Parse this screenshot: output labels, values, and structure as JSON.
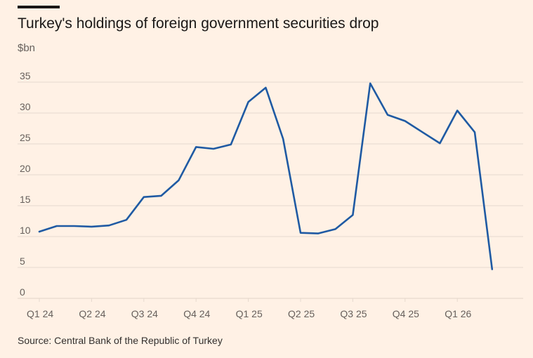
{
  "title": "Turkey's holdings of foreign government securities drop",
  "unit_label": "$bn",
  "source": "Source: Central Bank of the Republic of Turkey",
  "colors": {
    "background": "#fff1e5",
    "line": "#1f5aa3",
    "grid": "#e6d9ce",
    "text": "#66605c"
  },
  "chart_data": {
    "type": "line",
    "title": "Turkey's holdings of foreign government securities drop",
    "ylabel": "$bn",
    "xlabel": "",
    "ylim": [
      0,
      35
    ],
    "yticks": [
      0,
      5,
      10,
      15,
      20,
      25,
      30,
      35
    ],
    "grid": true,
    "x_tick_labels": [
      "Q1 24",
      "Q2 24",
      "Q3 24",
      "Q4 24",
      "Q1 25",
      "Q2 25",
      "Q3 25",
      "Q4 25",
      "Q1 26"
    ],
    "x": [
      "2024-01",
      "2024-02",
      "2024-03",
      "2024-04",
      "2024-05",
      "2024-06",
      "2024-07",
      "2024-08",
      "2024-09",
      "2024-10",
      "2024-11",
      "2024-12",
      "2025-01",
      "2025-02",
      "2025-03",
      "2025-04",
      "2025-05",
      "2025-06",
      "2025-07",
      "2025-08",
      "2025-09",
      "2025-10",
      "2025-11",
      "2025-12",
      "2026-01",
      "2026-02",
      "2026-03"
    ],
    "series": [
      {
        "values": [
          10.8,
          11.7,
          11.7,
          11.6,
          11.8,
          12.7,
          16.4,
          16.6,
          19.1,
          24.5,
          24.2,
          24.9,
          31.8,
          34.1,
          25.8,
          10.6,
          10.5,
          11.2,
          13.5,
          34.8,
          29.7,
          28.7,
          26.9,
          25.1,
          30.4,
          26.9,
          4.7
        ]
      }
    ]
  }
}
